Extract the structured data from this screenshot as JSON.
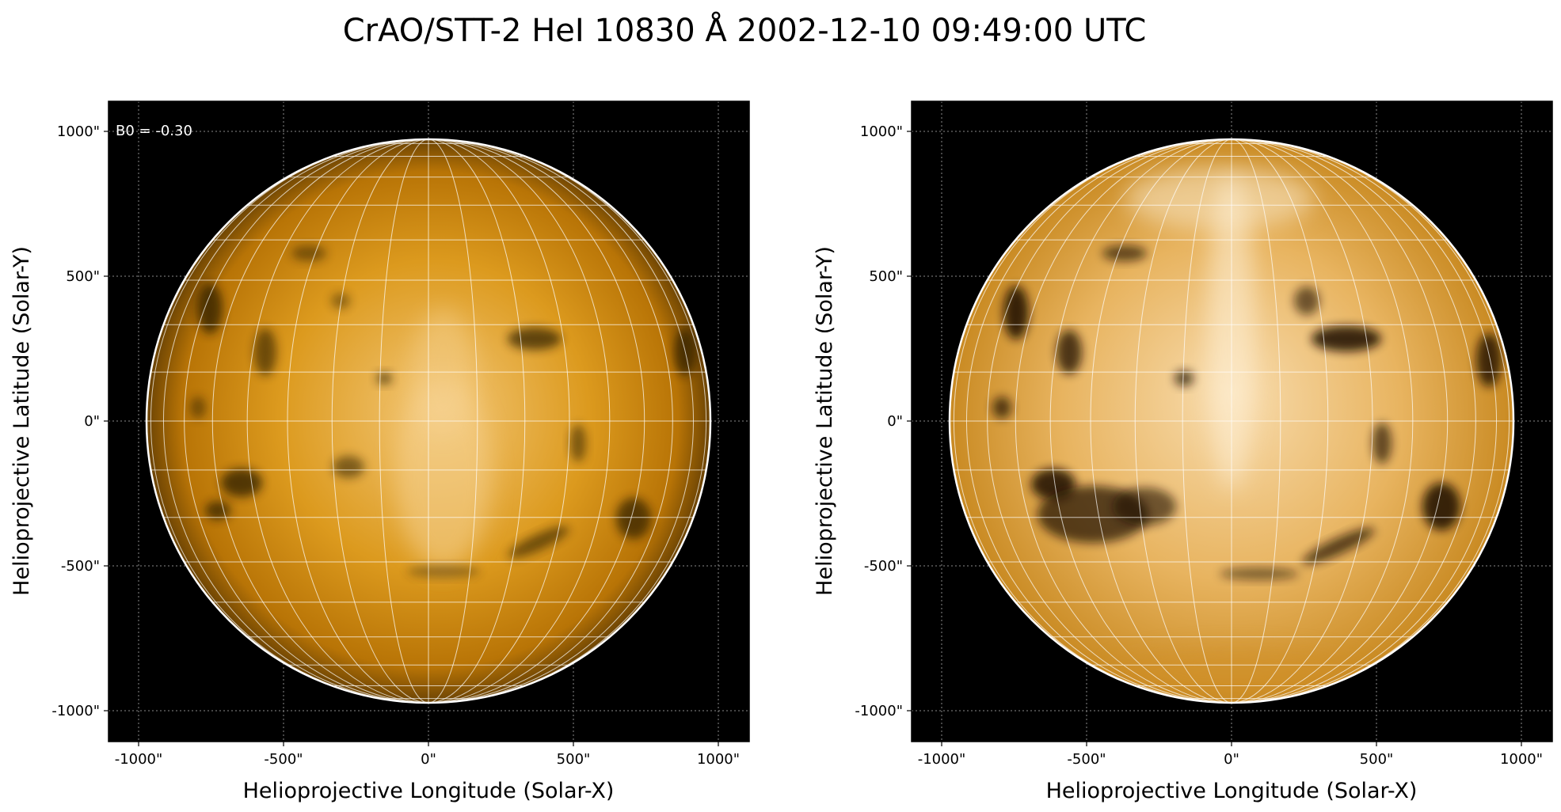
{
  "figure": {
    "title": "CrAO/STT-2 HeI 10830 Å 2002-12-10 09:49:00 UTC",
    "colors": {
      "background": "#000000",
      "disk_light": "#f5c97a",
      "disk_mid": "#d9900f",
      "disk_dark": "#3a2400",
      "grid": "#ffffff",
      "limb": "#ffffff"
    }
  },
  "panels": [
    {
      "name": "left",
      "xlabel": "Helioprojective Longitude (Solar-X)",
      "ylabel": "Helioprojective Latitude (Solar-Y)",
      "annotation": "B0 = -0.30",
      "x_ticks": [
        "-1000\"",
        "-500\"",
        "0\"",
        "500\"",
        "1000\""
      ],
      "y_ticks": [
        "1000\"",
        "500\"",
        "0\"",
        "-500\"",
        "-1000\""
      ],
      "contrast": "normal"
    },
    {
      "name": "right",
      "xlabel": "Helioprojective Longitude (Solar-X)",
      "ylabel": "Helioprojective Latitude (Solar-Y)",
      "annotation": "",
      "x_ticks": [
        "-1000\"",
        "-500\"",
        "0\"",
        "500\"",
        "1000\""
      ],
      "y_ticks": [
        "1000\"",
        "500\"",
        "0\"",
        "-500\"",
        "-1000\""
      ],
      "contrast": "enhanced"
    }
  ]
}
